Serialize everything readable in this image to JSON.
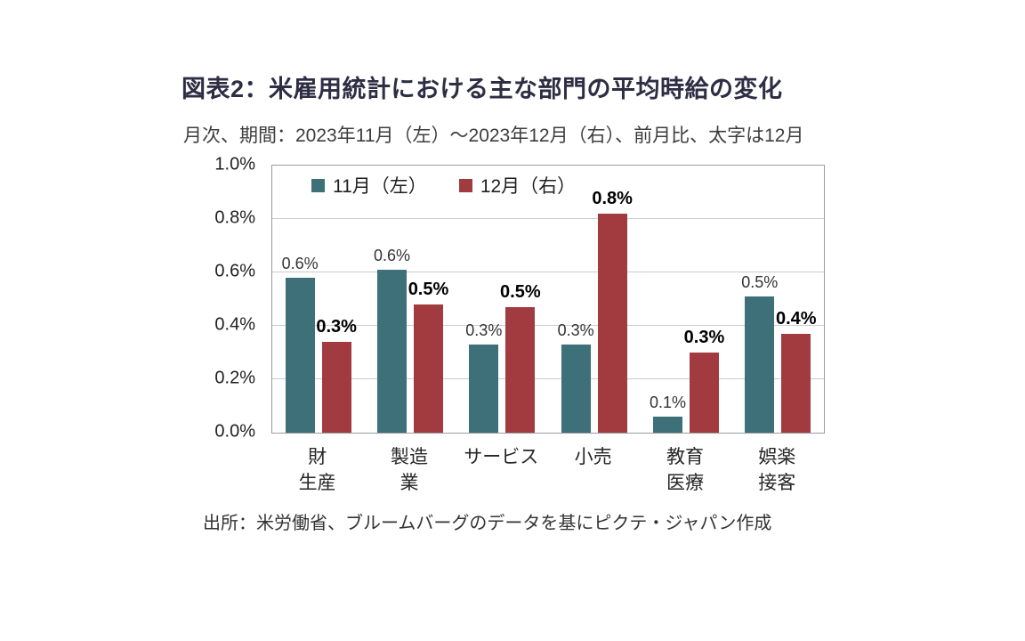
{
  "chart_data": {
    "type": "bar",
    "title": "図表2：米雇用統計における主な部門の平均時給の変化",
    "subtitle": "月次、期間：2023年11月（左）～2023年12月（右）、前月比、太字は12月",
    "source": "出所：米労働省、ブルームバーグのデータを基にピクテ・ジャパン作成",
    "categories": [
      [
        "財",
        "生産"
      ],
      [
        "製造",
        "業"
      ],
      [
        "サービス"
      ],
      [
        "小売"
      ],
      [
        "教育",
        "医療"
      ],
      [
        "娯楽",
        "接客"
      ]
    ],
    "series": [
      {
        "name": "11月（左）",
        "color": "#3D7078",
        "values": [
          0.58,
          0.61,
          0.33,
          0.33,
          0.06,
          0.51
        ],
        "labels": [
          "0.6%",
          "0.6%",
          "0.3%",
          "0.3%",
          "0.1%",
          "0.5%"
        ],
        "bold_labels": false
      },
      {
        "name": "12月（右）",
        "color": "#A23B40",
        "values": [
          0.34,
          0.48,
          0.47,
          0.82,
          0.3,
          0.37
        ],
        "labels": [
          "0.3%",
          "0.5%",
          "0.5%",
          "0.8%",
          "0.3%",
          "0.4%"
        ],
        "bold_labels": true
      }
    ],
    "ylim": [
      0,
      1.0
    ],
    "yticks": [
      "0.0%",
      "0.2%",
      "0.4%",
      "0.6%",
      "0.8%",
      "1.0%"
    ],
    "grid": true,
    "legend_position": "top-left-inside",
    "colors": {
      "november_bar": "#3D7078",
      "december_bar": "#A23B40",
      "title_text": "#2d2d44",
      "gridline": "#cccccc",
      "plot_border": "#9b9b9b"
    }
  }
}
